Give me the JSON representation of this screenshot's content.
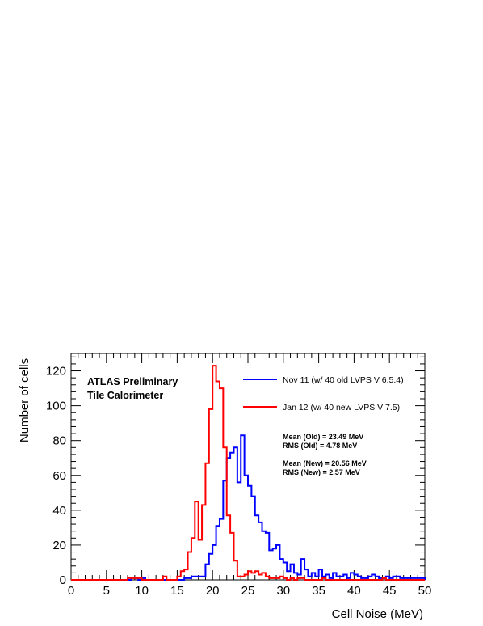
{
  "chart_data": {
    "type": "histogram",
    "title": "",
    "xlabel": "Cell Noise (MeV)",
    "ylabel": "Number of cells",
    "xlim": [
      0,
      50
    ],
    "ylim": [
      0,
      130
    ],
    "x_ticks": [
      "0",
      "5",
      "10",
      "15",
      "20",
      "25",
      "30",
      "35",
      "40",
      "45",
      "50"
    ],
    "y_ticks": [
      "0",
      "20",
      "40",
      "60",
      "80",
      "100",
      "120"
    ],
    "bin_width": 0.5,
    "annotations": {
      "experiment": "ATLAS Preliminary",
      "detector": "Tile Calorimeter",
      "old_stats": [
        "Mean (Old) = 23.49 MeV",
        "RMS (Old) = 4.78 MeV"
      ],
      "new_stats": [
        "Mean (New) = 20.56 MeV",
        "RMS (New) = 2.57 MeV"
      ]
    },
    "legend_position": "top-right",
    "series": [
      {
        "name": "Nov 11 (w/ 40 old LVPS V 6.5.4)",
        "color": "#0000ff",
        "x_start": 0,
        "values": [
          0,
          0,
          0,
          0,
          0,
          0,
          0,
          0,
          0,
          0,
          0,
          0,
          0,
          0,
          0,
          0,
          0,
          1,
          1,
          0,
          1,
          0,
          0,
          0,
          0,
          0,
          0,
          0,
          0,
          0,
          0,
          0,
          1,
          1,
          2,
          2,
          2,
          2,
          9,
          15,
          20,
          31,
          35,
          57,
          70,
          73,
          76,
          56,
          83,
          60,
          54,
          48,
          37,
          33,
          28,
          27,
          17,
          18,
          20,
          12,
          10,
          5,
          9,
          4,
          3,
          12,
          6,
          2,
          4,
          2,
          6,
          2,
          3,
          1,
          4,
          2,
          2,
          3,
          1,
          4,
          3,
          2,
          1,
          1,
          2,
          3,
          2,
          1,
          1,
          2,
          1,
          2,
          2,
          1,
          1,
          1,
          1,
          1,
          1,
          1
        ]
      },
      {
        "name": "Jan 12 (w/ 40 new LVPS V 7.5)",
        "color": "#ff0000",
        "x_start": 0,
        "values": [
          0,
          0,
          0,
          0,
          0,
          0,
          0,
          0,
          0,
          0,
          0,
          0,
          0,
          0,
          0,
          0,
          1,
          1,
          1,
          1,
          0,
          0,
          0,
          0,
          0,
          0,
          2,
          0,
          0,
          0,
          2,
          5,
          6,
          16,
          24,
          45,
          23,
          43,
          67,
          98,
          123,
          114,
          110,
          76,
          37,
          27,
          11,
          2,
          2,
          3,
          5,
          4,
          5,
          3,
          4,
          2,
          1,
          1,
          1,
          2,
          1,
          0,
          1,
          0,
          1,
          1,
          0,
          0,
          0,
          0,
          0,
          1,
          0,
          0,
          0,
          0,
          0,
          0,
          0,
          0,
          0,
          0,
          0,
          0,
          0,
          0,
          0,
          0,
          1,
          0,
          0,
          0,
          0,
          0,
          0,
          0,
          0,
          0,
          0,
          0
        ]
      }
    ]
  }
}
